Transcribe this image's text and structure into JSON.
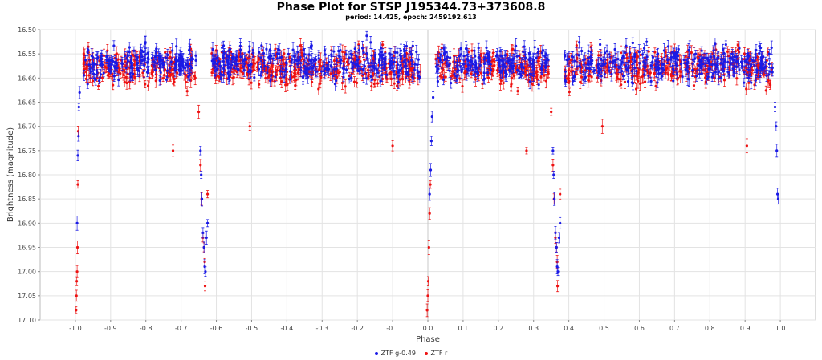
{
  "chart_data": {
    "type": "scatter",
    "title": "Phase Plot for STSP J195344.73+373608.8",
    "subtitle": "period: 14.425, epoch: 2459192.613",
    "xlabel": "Phase",
    "ylabel": "Brightness (magnitude)",
    "xlim": [
      -1.1,
      1.1
    ],
    "ylim": [
      17.1,
      16.5
    ],
    "y_inverted": true,
    "grid": true,
    "legend_position": "bottom",
    "x_ticks": [
      "-1.0",
      "-0.9",
      "-0.8",
      "-0.7",
      "-0.6",
      "-0.5",
      "-0.4",
      "-0.3",
      "-0.2",
      "-0.1",
      "0.0",
      "0.1",
      "0.2",
      "0.3",
      "0.4",
      "0.5",
      "0.6",
      "0.7",
      "0.8",
      "0.9",
      "1.0"
    ],
    "y_ticks": [
      "16.50",
      "16.55",
      "16.60",
      "16.65",
      "16.70",
      "16.75",
      "16.80",
      "16.85",
      "16.90",
      "16.95",
      "17.00",
      "17.05",
      "17.10"
    ],
    "baseline_magnitude": 16.57,
    "series": [
      {
        "name": "ZTF g-0.49",
        "color": "#1a1ae6",
        "eclipse_points": [
          [
            -0.995,
            16.9
          ],
          [
            -0.993,
            16.76
          ],
          [
            -0.991,
            16.72
          ],
          [
            -0.99,
            16.66
          ],
          [
            -0.988,
            16.63
          ],
          [
            -0.645,
            16.75
          ],
          [
            -0.643,
            16.8
          ],
          [
            -0.641,
            16.85
          ],
          [
            -0.638,
            16.92
          ],
          [
            -0.635,
            16.95
          ],
          [
            -0.633,
            16.99
          ],
          [
            -0.631,
            17.0
          ],
          [
            -0.628,
            16.93
          ],
          [
            -0.625,
            16.9
          ],
          [
            0.005,
            16.84
          ],
          [
            0.008,
            16.79
          ],
          [
            0.01,
            16.73
          ],
          [
            0.012,
            16.68
          ],
          [
            0.015,
            16.64
          ],
          [
            0.355,
            16.75
          ],
          [
            0.357,
            16.8
          ],
          [
            0.359,
            16.85
          ],
          [
            0.362,
            16.92
          ],
          [
            0.365,
            16.95
          ],
          [
            0.367,
            16.99
          ],
          [
            0.369,
            17.0
          ],
          [
            0.372,
            16.93
          ],
          [
            0.375,
            16.9
          ],
          [
            0.985,
            16.66
          ],
          [
            0.988,
            16.7
          ],
          [
            0.99,
            16.75
          ],
          [
            0.992,
            16.84
          ],
          [
            0.994,
            16.85
          ]
        ]
      },
      {
        "name": "ZTF r",
        "color": "#ee1111",
        "eclipse_points": [
          [
            -0.998,
            17.08
          ],
          [
            -0.997,
            17.05
          ],
          [
            -0.996,
            17.02
          ],
          [
            -0.995,
            17.0
          ],
          [
            -0.994,
            16.95
          ],
          [
            -0.993,
            16.82
          ],
          [
            -0.992,
            16.71
          ],
          [
            -0.723,
            16.75
          ],
          [
            -0.1,
            16.74
          ],
          [
            0.28,
            16.75
          ],
          [
            0.905,
            16.74
          ],
          [
            -0.65,
            16.67
          ],
          [
            -0.645,
            16.78
          ],
          [
            -0.642,
            16.85
          ],
          [
            -0.638,
            16.93
          ],
          [
            -0.635,
            16.95
          ],
          [
            -0.633,
            16.98
          ],
          [
            -0.632,
            17.03
          ],
          [
            -0.625,
            16.84
          ],
          [
            -0.002,
            17.08
          ],
          [
            0.0,
            17.05
          ],
          [
            0.001,
            17.02
          ],
          [
            0.003,
            16.95
          ],
          [
            0.005,
            16.88
          ],
          [
            0.007,
            16.82
          ],
          [
            0.35,
            16.67
          ],
          [
            0.355,
            16.78
          ],
          [
            0.358,
            16.85
          ],
          [
            0.362,
            16.93
          ],
          [
            0.365,
            16.95
          ],
          [
            0.367,
            16.98
          ],
          [
            0.368,
            17.03
          ],
          [
            0.375,
            16.84
          ],
          [
            -0.505,
            16.7
          ],
          [
            0.495,
            16.7
          ]
        ]
      }
    ]
  }
}
